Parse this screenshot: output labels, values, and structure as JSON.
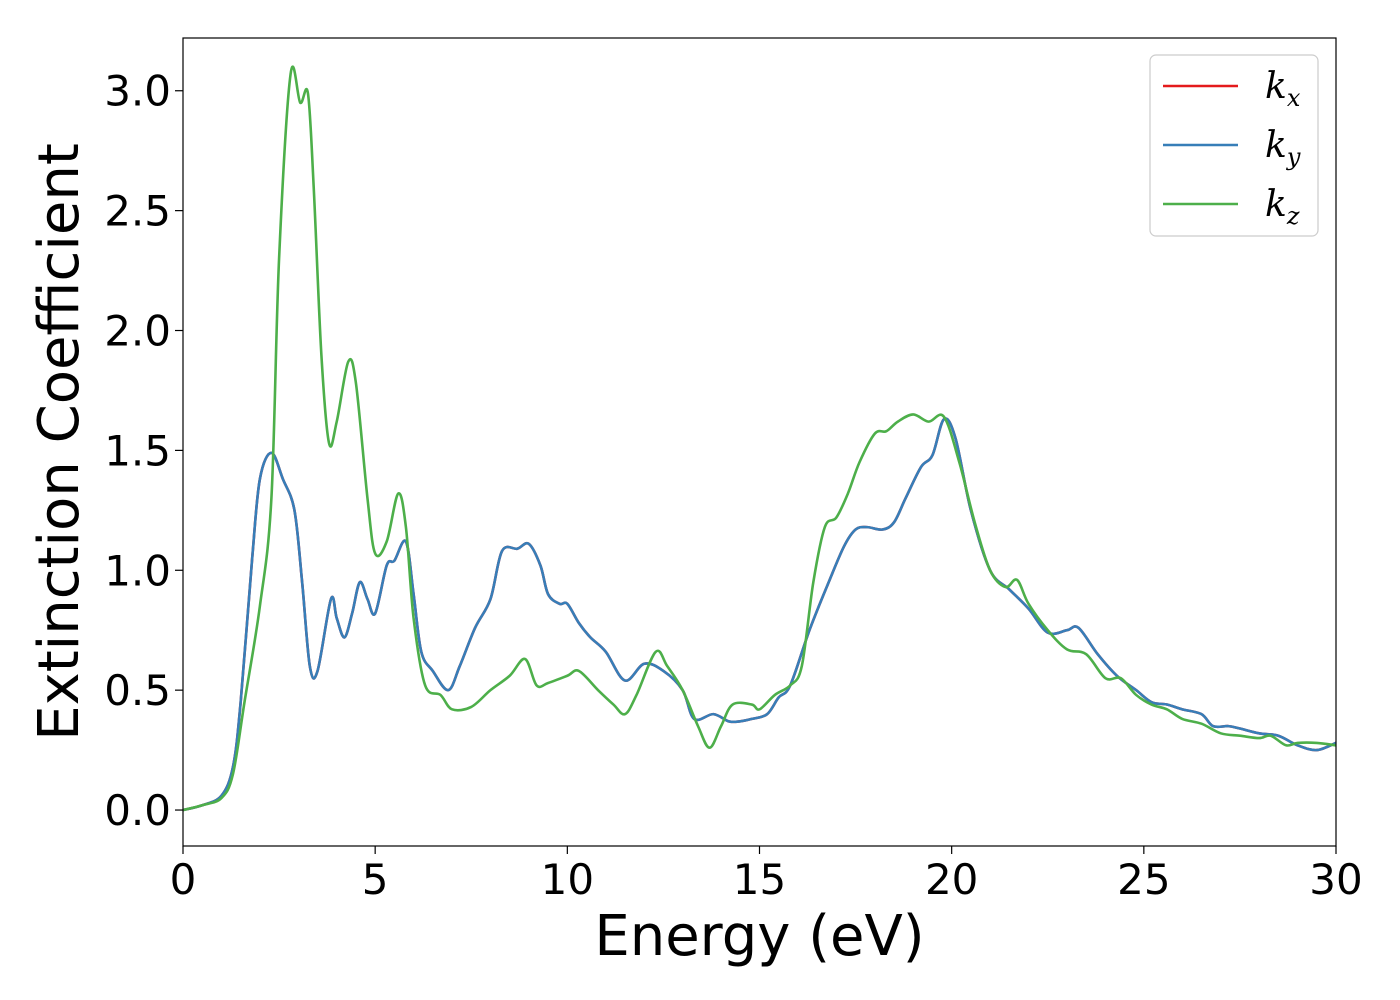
{
  "chart_data": {
    "type": "line",
    "title": "",
    "xlabel": "Energy (eV)",
    "ylabel": "Extinction Coefficient",
    "xlim": [
      0,
      30
    ],
    "ylim": [
      -0.15,
      3.22
    ],
    "xticks": [
      0,
      5,
      10,
      15,
      20,
      25,
      30
    ],
    "yticks": [
      0.0,
      0.5,
      1.0,
      1.5,
      2.0,
      2.5,
      3.0
    ],
    "xtick_labels": [
      "0",
      "5",
      "10",
      "15",
      "20",
      "25",
      "30"
    ],
    "ytick_labels": [
      "0.0",
      "0.5",
      "1.0",
      "1.5",
      "2.0",
      "2.5",
      "3.0"
    ],
    "grid": false,
    "legend_position": "top-right",
    "series": [
      {
        "name": "kx",
        "base": "k",
        "sub": "x",
        "color": "#e41a1c",
        "points": [
          [
            0,
            0
          ],
          [
            0.5,
            0.02
          ],
          [
            1.0,
            0.06
          ],
          [
            1.3,
            0.18
          ],
          [
            1.5,
            0.45
          ],
          [
            1.8,
            1.05
          ],
          [
            2.0,
            1.38
          ],
          [
            2.3,
            1.49
          ],
          [
            2.6,
            1.38
          ],
          [
            2.9,
            1.25
          ],
          [
            3.1,
            0.95
          ],
          [
            3.3,
            0.6
          ],
          [
            3.5,
            0.58
          ],
          [
            3.85,
            0.88
          ],
          [
            4.0,
            0.8
          ],
          [
            4.2,
            0.72
          ],
          [
            4.4,
            0.82
          ],
          [
            4.6,
            0.95
          ],
          [
            4.8,
            0.88
          ],
          [
            5.0,
            0.82
          ],
          [
            5.3,
            1.02
          ],
          [
            5.5,
            1.04
          ],
          [
            5.8,
            1.12
          ],
          [
            6.0,
            0.9
          ],
          [
            6.2,
            0.66
          ],
          [
            6.5,
            0.58
          ],
          [
            6.9,
            0.5
          ],
          [
            7.2,
            0.6
          ],
          [
            7.6,
            0.76
          ],
          [
            8.0,
            0.88
          ],
          [
            8.3,
            1.08
          ],
          [
            8.7,
            1.09
          ],
          [
            9.0,
            1.11
          ],
          [
            9.3,
            1.02
          ],
          [
            9.5,
            0.9
          ],
          [
            9.8,
            0.86
          ],
          [
            10.0,
            0.86
          ],
          [
            10.3,
            0.78
          ],
          [
            10.6,
            0.72
          ],
          [
            11.0,
            0.66
          ],
          [
            11.5,
            0.54
          ],
          [
            12.0,
            0.61
          ],
          [
            12.5,
            0.58
          ],
          [
            13.0,
            0.5
          ],
          [
            13.3,
            0.38
          ],
          [
            13.8,
            0.4
          ],
          [
            14.2,
            0.37
          ],
          [
            14.5,
            0.37
          ],
          [
            14.8,
            0.38
          ],
          [
            15.2,
            0.4
          ],
          [
            15.5,
            0.47
          ],
          [
            15.8,
            0.52
          ],
          [
            16.3,
            0.75
          ],
          [
            16.8,
            0.95
          ],
          [
            17.2,
            1.1
          ],
          [
            17.5,
            1.17
          ],
          [
            17.8,
            1.18
          ],
          [
            18.2,
            1.17
          ],
          [
            18.5,
            1.2
          ],
          [
            18.8,
            1.3
          ],
          [
            19.2,
            1.43
          ],
          [
            19.5,
            1.48
          ],
          [
            19.8,
            1.63
          ],
          [
            20.1,
            1.55
          ],
          [
            20.5,
            1.25
          ],
          [
            21.0,
            1.0
          ],
          [
            21.5,
            0.92
          ],
          [
            22.0,
            0.84
          ],
          [
            22.5,
            0.74
          ],
          [
            23.0,
            0.75
          ],
          [
            23.3,
            0.76
          ],
          [
            23.8,
            0.65
          ],
          [
            24.3,
            0.56
          ],
          [
            24.8,
            0.5
          ],
          [
            25.2,
            0.45
          ],
          [
            25.6,
            0.44
          ],
          [
            26.0,
            0.42
          ],
          [
            26.5,
            0.4
          ],
          [
            26.8,
            0.35
          ],
          [
            27.2,
            0.35
          ],
          [
            27.5,
            0.34
          ],
          [
            28.0,
            0.32
          ],
          [
            28.5,
            0.31
          ],
          [
            29.0,
            0.27
          ],
          [
            29.5,
            0.25
          ],
          [
            30.0,
            0.28
          ]
        ]
      },
      {
        "name": "ky",
        "base": "k",
        "sub": "y",
        "color": "#377eb8",
        "points": [
          [
            0,
            0
          ],
          [
            0.5,
            0.02
          ],
          [
            1.0,
            0.06
          ],
          [
            1.3,
            0.18
          ],
          [
            1.5,
            0.45
          ],
          [
            1.8,
            1.05
          ],
          [
            2.0,
            1.38
          ],
          [
            2.3,
            1.49
          ],
          [
            2.6,
            1.38
          ],
          [
            2.9,
            1.25
          ],
          [
            3.1,
            0.95
          ],
          [
            3.3,
            0.6
          ],
          [
            3.5,
            0.58
          ],
          [
            3.85,
            0.88
          ],
          [
            4.0,
            0.8
          ],
          [
            4.2,
            0.72
          ],
          [
            4.4,
            0.82
          ],
          [
            4.6,
            0.95
          ],
          [
            4.8,
            0.88
          ],
          [
            5.0,
            0.82
          ],
          [
            5.3,
            1.02
          ],
          [
            5.5,
            1.04
          ],
          [
            5.8,
            1.12
          ],
          [
            6.0,
            0.9
          ],
          [
            6.2,
            0.66
          ],
          [
            6.5,
            0.58
          ],
          [
            6.9,
            0.5
          ],
          [
            7.2,
            0.6
          ],
          [
            7.6,
            0.76
          ],
          [
            8.0,
            0.88
          ],
          [
            8.3,
            1.08
          ],
          [
            8.7,
            1.09
          ],
          [
            9.0,
            1.11
          ],
          [
            9.3,
            1.02
          ],
          [
            9.5,
            0.9
          ],
          [
            9.8,
            0.86
          ],
          [
            10.0,
            0.86
          ],
          [
            10.3,
            0.78
          ],
          [
            10.6,
            0.72
          ],
          [
            11.0,
            0.66
          ],
          [
            11.5,
            0.54
          ],
          [
            12.0,
            0.61
          ],
          [
            12.5,
            0.58
          ],
          [
            13.0,
            0.5
          ],
          [
            13.3,
            0.38
          ],
          [
            13.8,
            0.4
          ],
          [
            14.2,
            0.37
          ],
          [
            14.5,
            0.37
          ],
          [
            14.8,
            0.38
          ],
          [
            15.2,
            0.4
          ],
          [
            15.5,
            0.47
          ],
          [
            15.8,
            0.52
          ],
          [
            16.3,
            0.75
          ],
          [
            16.8,
            0.95
          ],
          [
            17.2,
            1.1
          ],
          [
            17.5,
            1.17
          ],
          [
            17.8,
            1.18
          ],
          [
            18.2,
            1.17
          ],
          [
            18.5,
            1.2
          ],
          [
            18.8,
            1.3
          ],
          [
            19.2,
            1.43
          ],
          [
            19.5,
            1.48
          ],
          [
            19.8,
            1.63
          ],
          [
            20.1,
            1.55
          ],
          [
            20.5,
            1.25
          ],
          [
            21.0,
            1.0
          ],
          [
            21.5,
            0.92
          ],
          [
            22.0,
            0.84
          ],
          [
            22.5,
            0.74
          ],
          [
            23.0,
            0.75
          ],
          [
            23.3,
            0.76
          ],
          [
            23.8,
            0.65
          ],
          [
            24.3,
            0.56
          ],
          [
            24.8,
            0.5
          ],
          [
            25.2,
            0.45
          ],
          [
            25.6,
            0.44
          ],
          [
            26.0,
            0.42
          ],
          [
            26.5,
            0.4
          ],
          [
            26.8,
            0.35
          ],
          [
            27.2,
            0.35
          ],
          [
            27.5,
            0.34
          ],
          [
            28.0,
            0.32
          ],
          [
            28.5,
            0.31
          ],
          [
            29.0,
            0.27
          ],
          [
            29.5,
            0.25
          ],
          [
            30.0,
            0.28
          ]
        ]
      },
      {
        "name": "kz",
        "base": "k",
        "sub": "z",
        "color": "#4daf4a",
        "points": [
          [
            0,
            0
          ],
          [
            0.5,
            0.02
          ],
          [
            1.0,
            0.05
          ],
          [
            1.3,
            0.15
          ],
          [
            1.6,
            0.45
          ],
          [
            2.0,
            0.85
          ],
          [
            2.3,
            1.3
          ],
          [
            2.5,
            2.3
          ],
          [
            2.8,
            3.07
          ],
          [
            3.05,
            2.95
          ],
          [
            3.25,
            2.99
          ],
          [
            3.4,
            2.6
          ],
          [
            3.6,
            1.9
          ],
          [
            3.8,
            1.53
          ],
          [
            4.0,
            1.62
          ],
          [
            4.3,
            1.87
          ],
          [
            4.5,
            1.78
          ],
          [
            4.8,
            1.3
          ],
          [
            5.0,
            1.07
          ],
          [
            5.3,
            1.12
          ],
          [
            5.6,
            1.32
          ],
          [
            5.8,
            1.18
          ],
          [
            6.0,
            0.8
          ],
          [
            6.3,
            0.52
          ],
          [
            6.7,
            0.48
          ],
          [
            7.0,
            0.42
          ],
          [
            7.5,
            0.43
          ],
          [
            8.0,
            0.5
          ],
          [
            8.5,
            0.56
          ],
          [
            8.9,
            0.63
          ],
          [
            9.2,
            0.52
          ],
          [
            9.5,
            0.53
          ],
          [
            10.0,
            0.56
          ],
          [
            10.3,
            0.58
          ],
          [
            10.8,
            0.5
          ],
          [
            11.2,
            0.44
          ],
          [
            11.5,
            0.4
          ],
          [
            11.8,
            0.48
          ],
          [
            12.3,
            0.66
          ],
          [
            12.6,
            0.6
          ],
          [
            13.0,
            0.5
          ],
          [
            13.4,
            0.35
          ],
          [
            13.7,
            0.26
          ],
          [
            14.0,
            0.35
          ],
          [
            14.3,
            0.44
          ],
          [
            14.8,
            0.44
          ],
          [
            15.0,
            0.42
          ],
          [
            15.4,
            0.48
          ],
          [
            15.8,
            0.52
          ],
          [
            16.1,
            0.6
          ],
          [
            16.4,
            0.95
          ],
          [
            16.7,
            1.18
          ],
          [
            17.0,
            1.22
          ],
          [
            17.3,
            1.32
          ],
          [
            17.6,
            1.45
          ],
          [
            18.0,
            1.57
          ],
          [
            18.3,
            1.58
          ],
          [
            18.6,
            1.62
          ],
          [
            19.0,
            1.65
          ],
          [
            19.4,
            1.62
          ],
          [
            19.8,
            1.64
          ],
          [
            20.2,
            1.45
          ],
          [
            20.6,
            1.2
          ],
          [
            21.0,
            1.0
          ],
          [
            21.4,
            0.93
          ],
          [
            21.7,
            0.96
          ],
          [
            22.0,
            0.86
          ],
          [
            22.5,
            0.75
          ],
          [
            23.0,
            0.67
          ],
          [
            23.5,
            0.65
          ],
          [
            24.0,
            0.55
          ],
          [
            24.4,
            0.55
          ],
          [
            24.8,
            0.48
          ],
          [
            25.2,
            0.44
          ],
          [
            25.6,
            0.42
          ],
          [
            26.0,
            0.38
          ],
          [
            26.5,
            0.36
          ],
          [
            27.0,
            0.32
          ],
          [
            27.5,
            0.31
          ],
          [
            28.0,
            0.3
          ],
          [
            28.3,
            0.31
          ],
          [
            28.7,
            0.27
          ],
          [
            29.0,
            0.28
          ],
          [
            29.5,
            0.28
          ],
          [
            30.0,
            0.27
          ]
        ]
      }
    ]
  }
}
